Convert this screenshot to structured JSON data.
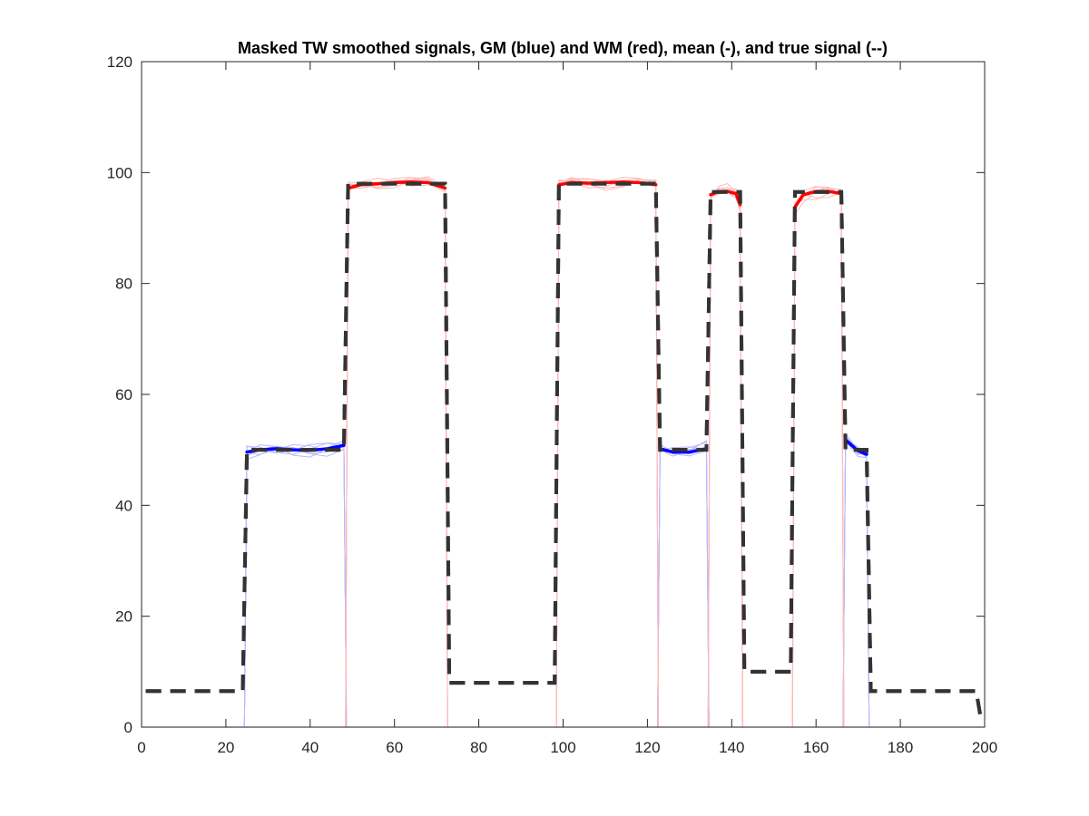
{
  "chart_data": {
    "type": "line",
    "title": "Masked TW smoothed signals, GM (blue) and WM (red), mean (-), and true signal (--)",
    "xlabel": "",
    "ylabel": "",
    "xlim": [
      0,
      200
    ],
    "ylim": [
      0,
      120
    ],
    "xticks": [
      0,
      20,
      40,
      60,
      80,
      100,
      120,
      140,
      160,
      180,
      200
    ],
    "yticks": [
      0,
      20,
      40,
      60,
      80,
      100,
      120
    ],
    "grid": false,
    "legend": "none",
    "colors": {
      "gm": "#0000ff",
      "wm": "#ff0000",
      "gm_faint": "#b8b8ff",
      "wm_faint": "#ffb8b8",
      "true_signal": "#333333"
    },
    "series": [
      {
        "role": "true-signal",
        "style": "dashed",
        "x": [
          1,
          24,
          25,
          48,
          49,
          72,
          73,
          98,
          99,
          122,
          123,
          134,
          135,
          142,
          143,
          154,
          155,
          166,
          167,
          172,
          173,
          198,
          199
        ],
        "y": [
          6.5,
          6.5,
          50,
          50,
          98,
          98,
          8,
          8,
          98,
          98,
          50,
          50,
          96.5,
          96.5,
          10,
          10,
          96.5,
          96.5,
          50,
          50,
          6.5,
          6.5,
          2
        ]
      },
      {
        "role": "gm-mean",
        "segments": [
          {
            "x": [
              25,
              28,
              32,
              36,
              40,
              44,
              48
            ],
            "y": [
              49.6,
              50.0,
              50.2,
              50.0,
              49.9,
              50.2,
              50.8
            ]
          },
          {
            "x": [
              123,
              126,
              130,
              134
            ],
            "y": [
              50.2,
              49.6,
              49.6,
              50.2
            ]
          },
          {
            "x": [
              167,
              170,
              172
            ],
            "y": [
              51.8,
              49.8,
              49.2
            ]
          }
        ]
      },
      {
        "role": "wm-mean",
        "segments": [
          {
            "x": [
              49,
              52,
              56,
              60,
              64,
              68,
              72
            ],
            "y": [
              97.2,
              97.8,
              98.0,
              98.2,
              98.3,
              98.2,
              97.2
            ]
          },
          {
            "x": [
              99,
              102,
              106,
              110,
              114,
              118,
              122
            ],
            "y": [
              97.8,
              98.2,
              98.1,
              98.2,
              98.3,
              98.2,
              97.8
            ]
          },
          {
            "x": [
              135,
              137,
              139,
              141,
              142
            ],
            "y": [
              96.0,
              96.6,
              96.6,
              96.2,
              94.2
            ]
          },
          {
            "x": [
              155,
              157,
              160,
              163,
              166
            ],
            "y": [
              93.8,
              96.0,
              96.6,
              96.6,
              96.2
            ]
          }
        ]
      }
    ]
  }
}
